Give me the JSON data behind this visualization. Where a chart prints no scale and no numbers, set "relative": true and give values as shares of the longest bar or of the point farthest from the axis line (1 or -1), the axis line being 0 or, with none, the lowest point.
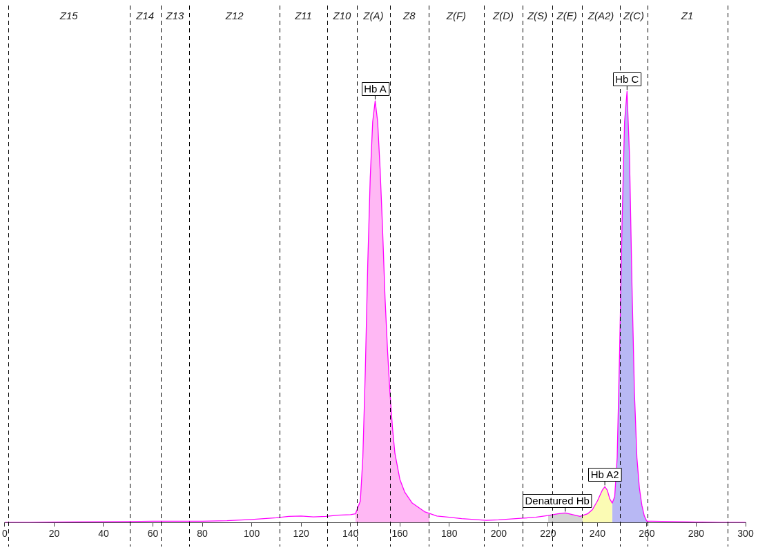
{
  "chart_data": {
    "type": "line",
    "relative": true,
    "legend": false,
    "marker": "none",
    "line_style": "solid",
    "xlim": [
      0,
      300
    ],
    "xticks": [
      0,
      20,
      40,
      60,
      80,
      100,
      120,
      140,
      160,
      180,
      200,
      220,
      240,
      260,
      280,
      300
    ],
    "series": [
      {
        "type": "area",
        "color": "#ffb8f4",
        "x": [
          142,
          144,
          145,
          146,
          147,
          148,
          149,
          150,
          151,
          152,
          153,
          154,
          155,
          156,
          157,
          158,
          160,
          162,
          165,
          170,
          172
        ],
        "values": [
          0.02,
          0.05,
          0.15,
          0.35,
          0.6,
          0.8,
          0.93,
          0.978,
          0.93,
          0.82,
          0.68,
          0.52,
          0.4,
          0.3,
          0.22,
          0.16,
          0.1,
          0.07,
          0.045,
          0.025,
          0.02
        ]
      },
      {
        "type": "area",
        "color": "#d4d4d4",
        "x": [
          220,
          224,
          227,
          230,
          233,
          234
        ],
        "values": [
          0.016,
          0.02,
          0.022,
          0.018,
          0.014,
          0.016
        ]
      },
      {
        "type": "area",
        "color": "#fbfbb4",
        "x": [
          234,
          236,
          238,
          240,
          242,
          243,
          244,
          245,
          246
        ],
        "values": [
          0.016,
          0.02,
          0.03,
          0.05,
          0.075,
          0.083,
          0.075,
          0.055,
          0.045
        ]
      },
      {
        "type": "area",
        "color": "#b8b8f4",
        "x": [
          246,
          247,
          248,
          249,
          250,
          251,
          252,
          253,
          254,
          255,
          256,
          257,
          258,
          259,
          260
        ],
        "values": [
          0.045,
          0.06,
          0.15,
          0.4,
          0.7,
          0.93,
          1,
          0.85,
          0.55,
          0.3,
          0.15,
          0.08,
          0.04,
          0.015,
          0.003
        ]
      },
      {
        "type": "line",
        "color": "#ff00ff",
        "x": [
          0,
          10,
          20,
          50,
          60,
          80,
          90,
          100,
          110,
          115,
          120,
          125,
          130,
          135,
          140,
          142,
          144,
          145,
          146,
          147,
          148,
          149,
          150,
          151,
          152,
          153,
          154,
          155,
          156,
          157,
          158,
          160,
          162,
          165,
          170,
          175,
          180,
          185,
          190,
          195,
          200,
          205,
          210,
          215,
          220,
          224,
          227,
          230,
          233,
          236,
          238,
          240,
          242,
          243,
          244,
          245,
          246,
          247,
          248,
          249,
          250,
          251,
          252,
          253,
          254,
          255,
          256,
          257,
          258,
          259,
          260,
          262,
          270,
          280,
          290,
          300
        ],
        "values": [
          0,
          0,
          0.001,
          0.002,
          0.003,
          0.003,
          0.004,
          0.007,
          0.011,
          0.014,
          0.015,
          0.013,
          0.014,
          0.017,
          0.018,
          0.02,
          0.05,
          0.15,
          0.35,
          0.6,
          0.8,
          0.93,
          0.978,
          0.93,
          0.82,
          0.68,
          0.52,
          0.4,
          0.3,
          0.22,
          0.16,
          0.1,
          0.07,
          0.045,
          0.025,
          0.015,
          0.012,
          0.009,
          0.007,
          0.005,
          0.006,
          0.008,
          0.01,
          0.012,
          0.016,
          0.02,
          0.022,
          0.018,
          0.014,
          0.02,
          0.03,
          0.05,
          0.075,
          0.083,
          0.075,
          0.055,
          0.045,
          0.06,
          0.15,
          0.4,
          0.7,
          0.93,
          1,
          0.85,
          0.55,
          0.3,
          0.15,
          0.08,
          0.04,
          0.015,
          0.003,
          0.003,
          0.002,
          0.001,
          0,
          0
        ]
      }
    ],
    "ref_lines": [
      {
        "axis": "x",
        "value": 1.4,
        "line_style": "dashed"
      },
      {
        "axis": "x",
        "value": 50.5,
        "line_style": "dashed"
      },
      {
        "axis": "x",
        "value": 63.2,
        "line_style": "dashed"
      },
      {
        "axis": "x",
        "value": 74.7,
        "line_style": "dashed"
      },
      {
        "axis": "x",
        "value": 111.4,
        "line_style": "dashed"
      },
      {
        "axis": "x",
        "value": 130.5,
        "line_style": "dashed"
      },
      {
        "axis": "x",
        "value": 142.7,
        "line_style": "dashed"
      },
      {
        "axis": "x",
        "value": 155.9,
        "line_style": "dashed"
      },
      {
        "axis": "x",
        "value": 171.7,
        "line_style": "dashed"
      },
      {
        "axis": "x",
        "value": 194,
        "line_style": "dashed"
      },
      {
        "axis": "x",
        "value": 209.8,
        "line_style": "dashed"
      },
      {
        "axis": "x",
        "value": 221.6,
        "line_style": "dashed"
      },
      {
        "axis": "x",
        "value": 233.7,
        "line_style": "dashed"
      },
      {
        "axis": "x",
        "value": 249.2,
        "line_style": "dashed"
      },
      {
        "axis": "x",
        "value": 260.2,
        "line_style": "dashed"
      },
      {
        "axis": "x",
        "value": 292.6,
        "line_style": "dashed"
      }
    ],
    "annotations": [
      "Z15",
      "Z14",
      "Z13",
      "Z12",
      "Z11",
      "Z10",
      "Z(A)",
      "Z8",
      "Z(F)",
      "Z(D)",
      "Z(S)",
      "Z(E)",
      "Z(A2)",
      "Z(C)",
      "Z1",
      {
        "text": "Hb A",
        "x": 150,
        "y": 0.978
      },
      {
        "text": "Denatured Hb",
        "x": 227,
        "y": 0.022
      },
      {
        "text": "Hb A2",
        "x": 243,
        "y": 0.083
      },
      {
        "text": "Hb C",
        "x": 252,
        "y": 1
      }
    ]
  }
}
